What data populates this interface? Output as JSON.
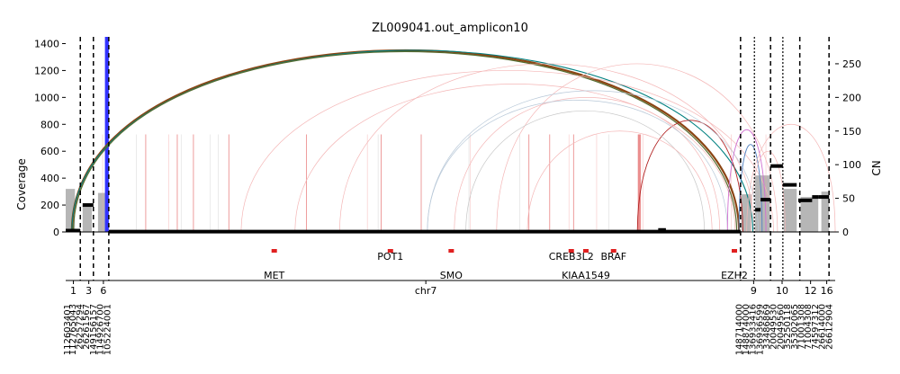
{
  "chart_data": {
    "type": "line",
    "title": "ZL009041.out_amplicon10",
    "ylabel_left": "Coverage",
    "ylabel_right": "CN",
    "ylim_left": [
      0,
      1450
    ],
    "yticks_left": [
      0,
      200,
      400,
      600,
      800,
      1000,
      1200,
      1400
    ],
    "ylim_right": [
      0,
      290
    ],
    "yticks_right": [
      0,
      50,
      100,
      150,
      200,
      250
    ],
    "xlim": [
      0,
      1000
    ],
    "grid": false,
    "chromosome_labels": [
      {
        "label": "1",
        "x": 10
      },
      {
        "label": "3",
        "x": 30
      },
      {
        "label": "6",
        "x": 49
      },
      {
        "label": "chr7",
        "x": 468
      },
      {
        "label": "9",
        "x": 894
      },
      {
        "label": "10",
        "x": 931
      },
      {
        "label": "12",
        "x": 968
      },
      {
        "label": "16",
        "x": 989
      }
    ],
    "position_labels": [
      {
        "label": "112603401",
        "x": 1
      },
      {
        "label": "112765043",
        "x": 8
      },
      {
        "label": "26257294",
        "x": 17
      },
      {
        "label": "26261567",
        "x": 26
      },
      {
        "label": "149156157",
        "x": 35
      },
      {
        "label": "114926700",
        "x": 44
      },
      {
        "label": "105224001",
        "x": 53
      },
      {
        "label": "148714000",
        "x": 874
      },
      {
        "label": "148874000",
        "x": 883
      },
      {
        "label": "136933416",
        "x": 892
      },
      {
        "label": "136936599",
        "x": 901
      },
      {
        "label": "33486869",
        "x": 910
      },
      {
        "label": "20049530",
        "x": 919
      },
      {
        "label": "20049560",
        "x": 928
      },
      {
        "label": "35250118",
        "x": 937
      },
      {
        "label": "35302065",
        "x": 946
      },
      {
        "label": "71001308",
        "x": 955
      },
      {
        "label": "71004308",
        "x": 964
      },
      {
        "label": "74597312",
        "x": 973
      },
      {
        "label": "26614000",
        "x": 982
      },
      {
        "label": "26612904",
        "x": 991
      }
    ],
    "segment_boundaries_dashed": [
      19,
      36,
      56,
      877,
      916,
      954,
      992
    ],
    "segment_boundaries_dotted": [
      895,
      932
    ],
    "genes": [
      {
        "name": "MET",
        "x": 271,
        "row": "lower"
      },
      {
        "name": "POT1",
        "x": 422,
        "row": "upper"
      },
      {
        "name": "SMO",
        "x": 501,
        "row": "lower"
      },
      {
        "name": "CREB3L2",
        "x": 657,
        "row": "upper"
      },
      {
        "name": "KIAA1549",
        "x": 676,
        "row": "lower"
      },
      {
        "name": "BRAF",
        "x": 712,
        "row": "upper"
      },
      {
        "name": "EZH2",
        "x": 869,
        "row": "lower"
      }
    ],
    "gene_markers": [
      271,
      422,
      501,
      657,
      676,
      712,
      869
    ],
    "coverage_gray": [
      {
        "x0": 0,
        "x1": 12,
        "value": 320
      },
      {
        "x0": 22,
        "x1": 34,
        "value": 200
      },
      {
        "x0": 42,
        "x1": 54,
        "value": 290
      },
      {
        "x0": 878,
        "x1": 891,
        "value": 280
      },
      {
        "x0": 896,
        "x1": 915,
        "value": 420
      },
      {
        "x0": 933,
        "x1": 950,
        "value": 320
      },
      {
        "x0": 955,
        "x1": 978,
        "value": 260
      },
      {
        "x0": 982,
        "x1": 992,
        "value": 300
      }
    ],
    "coverage_blue": {
      "x0": 51,
      "x1": 56,
      "value": 1450
    },
    "cn_segments": [
      {
        "x0": 0,
        "x1": 19,
        "cn": 2
      },
      {
        "x0": 22,
        "x1": 36,
        "cn": 40
      },
      {
        "x0": 56,
        "x1": 877,
        "cn": 0.5
      },
      {
        "x0": 770,
        "x1": 780,
        "cn": 3
      },
      {
        "x0": 896,
        "x1": 903,
        "cn": 33
      },
      {
        "x0": 903,
        "x1": 916,
        "cn": 48
      },
      {
        "x0": 916,
        "x1": 932,
        "cn": 98
      },
      {
        "x0": 932,
        "x1": 950,
        "cn": 70
      },
      {
        "x0": 952,
        "x1": 970,
        "cn": 47
      },
      {
        "x0": 970,
        "x1": 978,
        "cn": 52
      },
      {
        "x0": 978,
        "x1": 992,
        "cn": 52
      }
    ],
    "breakpoints_red": [
      104,
      145,
      166,
      212,
      313,
      410,
      462,
      602,
      629,
      660,
      744,
      745,
      746,
      747
    ],
    "breakpoints_pink": [
      48,
      134,
      392,
      526,
      654,
      690,
      750,
      865,
      910
    ],
    "breakpoints_height": 145,
    "arcs": [
      {
        "x0": 8,
        "x1": 875,
        "height": 1350,
        "color": "#8b4513",
        "width": 2.2
      },
      {
        "x0": 8,
        "x1": 893,
        "height": 1350,
        "color": "#008080",
        "width": 1.1
      },
      {
        "x0": 10,
        "x1": 872,
        "height": 1340,
        "color": "#556b2f",
        "width": 1.2
      },
      {
        "x0": 743,
        "x1": 880,
        "height": 830,
        "color": "#b22222",
        "width": 0.9
      },
      {
        "x0": 228,
        "x1": 920,
        "height": 1200,
        "color": "#f4b6b6",
        "width": 0.7
      },
      {
        "x0": 298,
        "x1": 870,
        "height": 1100,
        "color": "#f4b6b6",
        "width": 0.7
      },
      {
        "x0": 356,
        "x1": 895,
        "height": 1250,
        "color": "#f4b6b6",
        "width": 0.7
      },
      {
        "x0": 505,
        "x1": 850,
        "height": 1000,
        "color": "#f4b6b6",
        "width": 0.7
      },
      {
        "x0": 560,
        "x1": 925,
        "height": 1250,
        "color": "#f4b6b6",
        "width": 0.7
      },
      {
        "x0": 470,
        "x1": 900,
        "height": 1050,
        "color": "#b8c8d8",
        "width": 0.7
      },
      {
        "x0": 470,
        "x1": 860,
        "height": 980,
        "color": "#b8c8d8",
        "width": 0.7
      },
      {
        "x0": 520,
        "x1": 830,
        "height": 900,
        "color": "#c8c8c8",
        "width": 0.7
      },
      {
        "x0": 600,
        "x1": 840,
        "height": 750,
        "color": "#f4b6b6",
        "width": 0.7
      },
      {
        "x0": 860,
        "x1": 910,
        "height": 760,
        "color": "#d070d0",
        "width": 0.9
      },
      {
        "x0": 875,
        "x1": 905,
        "height": 650,
        "color": "#5080c0",
        "width": 0.9
      },
      {
        "x0": 890,
        "x1": 935,
        "height": 600,
        "color": "#f4b6b6",
        "width": 0.7
      },
      {
        "x0": 885,
        "x1": 1000,
        "height": 800,
        "color": "#f4b6b6",
        "width": 0.7
      }
    ]
  }
}
